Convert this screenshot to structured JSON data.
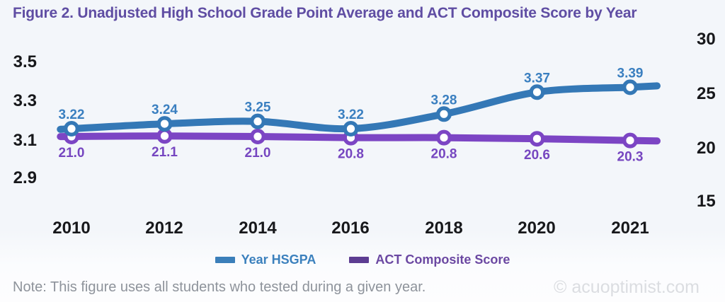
{
  "title": "Figure 2. Unadjusted High School Grade Point Average and ACT Composite Score by Year",
  "note": "Note: This figure uses all students who tested during a given year.",
  "watermark": "© acuoptimist.com",
  "colors": {
    "title": "#5f4da3",
    "hsgpa_line": "#3478b6",
    "hsgpa_label": "#3a7fc0",
    "act_line": "#7c45c4",
    "act_label": "#7646c0",
    "act_legend_swatch": "#5d3d92",
    "act_legend_text": "#6b48a2",
    "hsgpa_legend_swatch": "#3b7fba",
    "hsgpa_legend_text": "#3b80bd",
    "axis_text": "#17181b",
    "note_text": "#8e939b",
    "watermark_text": "#dbdde1",
    "background": "#f3f6fa"
  },
  "chart_data": {
    "type": "line",
    "title": "Figure 2. Unadjusted High School Grade Point Average and ACT Composite Score by Year",
    "categories": [
      "2010",
      "2012",
      "2014",
      "2016",
      "2018",
      "2020",
      "2021"
    ],
    "series": [
      {
        "name": "Year HSGPA",
        "axis": "left",
        "values": [
          3.22,
          3.24,
          3.25,
          3.22,
          3.28,
          3.37,
          3.39
        ],
        "labels": [
          "3.22",
          "3.24",
          "3.25",
          "3.22",
          "3.28",
          "3.37",
          "3.39"
        ]
      },
      {
        "name": "ACT Composite Score",
        "axis": "right",
        "values": [
          21.0,
          21.1,
          21.0,
          20.8,
          20.8,
          20.6,
          20.3
        ],
        "labels": [
          "21.0",
          "21.1",
          "21.0",
          "20.8",
          "20.8",
          "20.6",
          "20.3"
        ]
      }
    ],
    "left_axis": {
      "ticks": [
        "3.5",
        "3.3",
        "3.1",
        "2.9"
      ],
      "range": [
        2.9,
        3.5
      ]
    },
    "right_axis": {
      "ticks": [
        "30",
        "25",
        "20",
        "15"
      ],
      "range": [
        15,
        30
      ]
    },
    "grid": false,
    "legend_position": "bottom",
    "markers": "open-circle",
    "smooth": true
  }
}
